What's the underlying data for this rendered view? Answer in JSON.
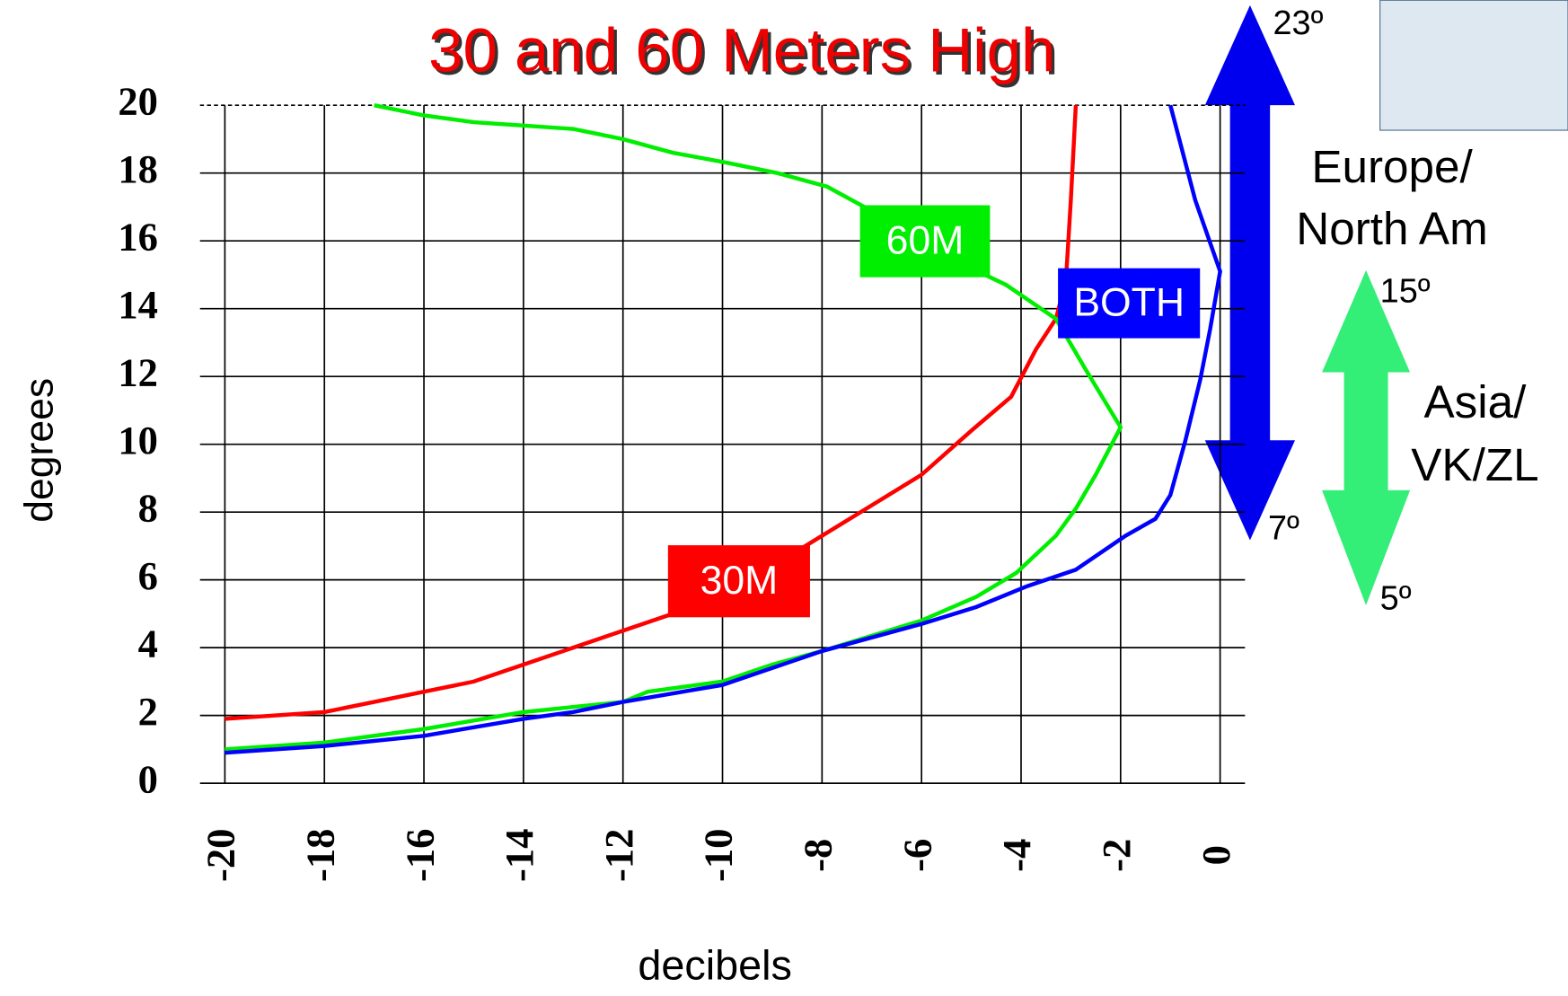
{
  "chart_data": {
    "type": "line",
    "title": "30 and 60 Meters High",
    "x_label": "decibels",
    "y_label": "degrees",
    "xlim": [
      -20.5,
      0.5
    ],
    "ylim": [
      0,
      20
    ],
    "xticks": [
      -20,
      -18,
      -16,
      -14,
      -12,
      -10,
      -8,
      -6,
      -4,
      -2,
      0
    ],
    "yticks": [
      0,
      2,
      4,
      6,
      8,
      10,
      12,
      14,
      16,
      18,
      20
    ],
    "grid": true,
    "series": [
      {
        "name": "30M",
        "color": "#ff0000",
        "x": [
          -20,
          -18,
          -17,
          -16,
          -15,
          -14,
          -13,
          -12,
          -11,
          -10,
          -9,
          -8,
          -7,
          -6,
          -5,
          -4.2,
          -3.7,
          -3.3,
          -3.1,
          -3,
          -2.9
        ],
        "values": [
          1.9,
          2.1,
          2.4,
          2.7,
          3.0,
          3.5,
          4.0,
          4.5,
          5.0,
          5.7,
          6.4,
          7.3,
          8.2,
          9.1,
          10.4,
          11.4,
          12.8,
          13.7,
          14.8,
          17.2,
          20
        ]
      },
      {
        "name": "60M",
        "color": "#00ee00",
        "x": [
          -20,
          -18,
          -16,
          -14,
          -12,
          -11.5,
          -10,
          -9,
          -8,
          -6,
          -4.9,
          -4.1,
          -3.3,
          -2.9,
          -2.5,
          -2,
          -2.7,
          -3.3,
          -4.3,
          -5.3,
          -6.9,
          -7.9,
          -8.9,
          -9.9,
          -11,
          -12,
          -13,
          -14,
          -15,
          -16,
          -17
        ],
        "values": [
          1.0,
          1.2,
          1.6,
          2.1,
          2.4,
          2.7,
          3.0,
          3.5,
          3.9,
          4.8,
          5.5,
          6.2,
          7.3,
          8.1,
          9.1,
          10.5,
          12.2,
          13.7,
          14.7,
          15.4,
          16.8,
          17.6,
          18.0,
          18.3,
          18.6,
          19.0,
          19.3,
          19.4,
          19.5,
          19.7,
          20
        ]
      },
      {
        "name": "BOTH",
        "color": "#0000ff",
        "x": [
          -20,
          -18,
          -16,
          -14,
          -13,
          -12,
          -10,
          -8,
          -6,
          -4.9,
          -3.9,
          -2.9,
          -1.9,
          -1.3,
          -1,
          -0.7,
          -0.4,
          -0.2,
          0,
          -0.5,
          -1
        ],
        "values": [
          0.9,
          1.1,
          1.4,
          1.9,
          2.1,
          2.4,
          2.9,
          3.9,
          4.7,
          5.2,
          5.8,
          6.3,
          7.3,
          7.8,
          8.5,
          10.1,
          11.9,
          13.4,
          15.1,
          17.2,
          20
        ]
      }
    ],
    "regions": [
      {
        "top": "23º",
        "bottom": "7º",
        "label": [
          "Europe/",
          "North Am"
        ]
      },
      {
        "top": "15º",
        "bottom": "5º",
        "label": [
          "Asia/",
          "VK/ZL"
        ]
      }
    ]
  }
}
